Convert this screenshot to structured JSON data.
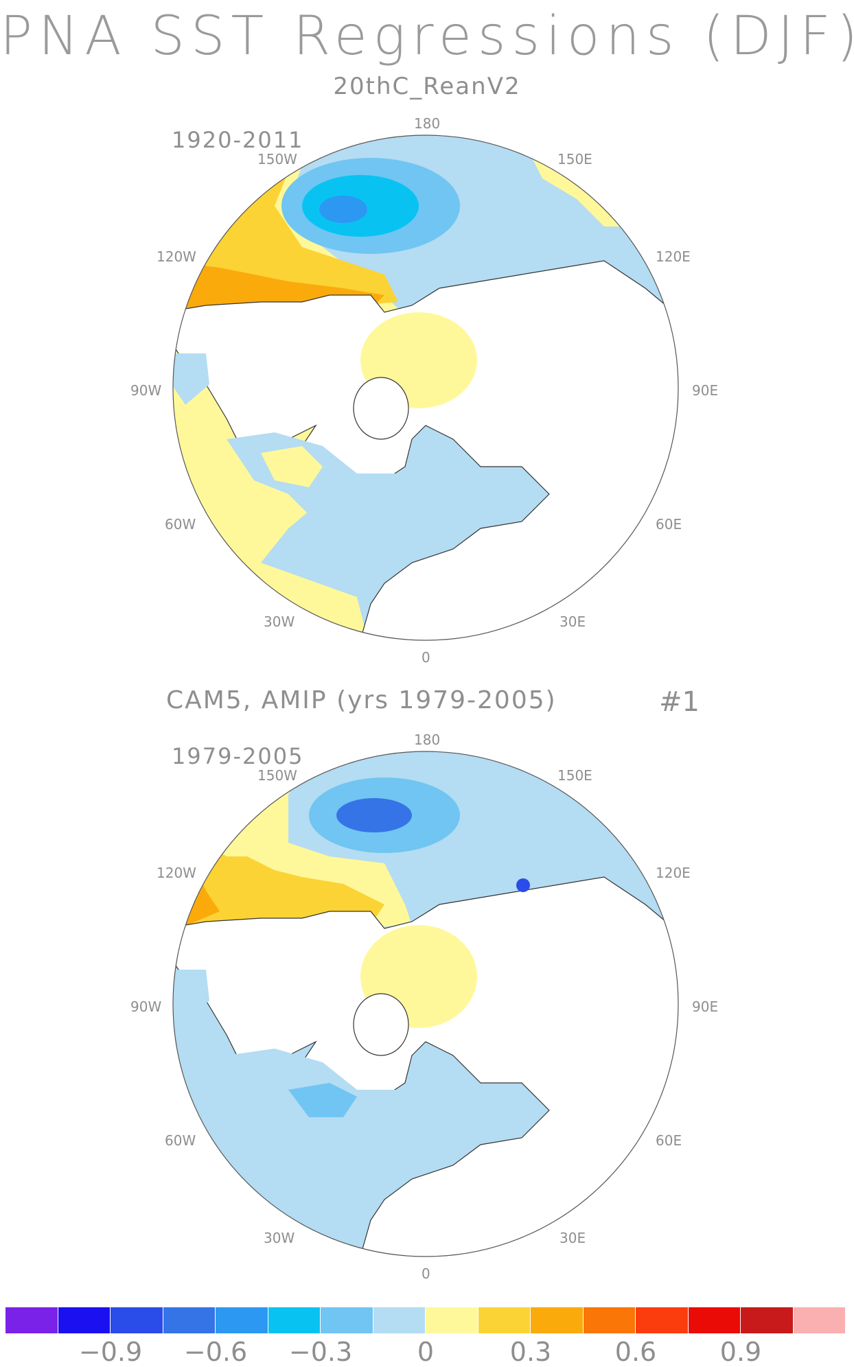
{
  "title": "PNA SST Regressions (DJF)",
  "panel1": {
    "subtitle": "20thC_ReanV2",
    "years": "1920-2011",
    "longitude_labels": {
      "top": "180",
      "nw1": "150W",
      "ne1": "150E",
      "w1": "120W",
      "e1": "120E",
      "w2": "90W",
      "e2": "90E",
      "w3": "60W",
      "e3": "60E",
      "sw": "30W",
      "se": "30E",
      "bottom": "0"
    }
  },
  "panel2": {
    "subtitle": "CAM5, AMIP (yrs 1979-2005)",
    "number": "#1",
    "years": "1979-2005",
    "longitude_labels": {
      "top": "180",
      "nw1": "150W",
      "ne1": "150E",
      "w1": "120W",
      "e1": "120E",
      "w2": "90W",
      "e2": "90E",
      "w3": "60W",
      "e3": "60E",
      "sw": "30W",
      "se": "30E",
      "bottom": "0"
    }
  },
  "colorbar": {
    "colors": [
      "#7b22e8",
      "#1a10f0",
      "#2a4ce8",
      "#3574e6",
      "#2c98f2",
      "#08c3f2",
      "#70c5f2",
      "#b4dcf2",
      "#fff89a",
      "#fbd334",
      "#fbaa0c",
      "#fa7606",
      "#fb3c0d",
      "#ea0a06",
      "#c81a1a",
      "#fab0b0"
    ],
    "labels": [
      "−0.9",
      "−0.6",
      "−0.3",
      "0",
      "0.3",
      "0.6",
      "0.9"
    ]
  }
}
